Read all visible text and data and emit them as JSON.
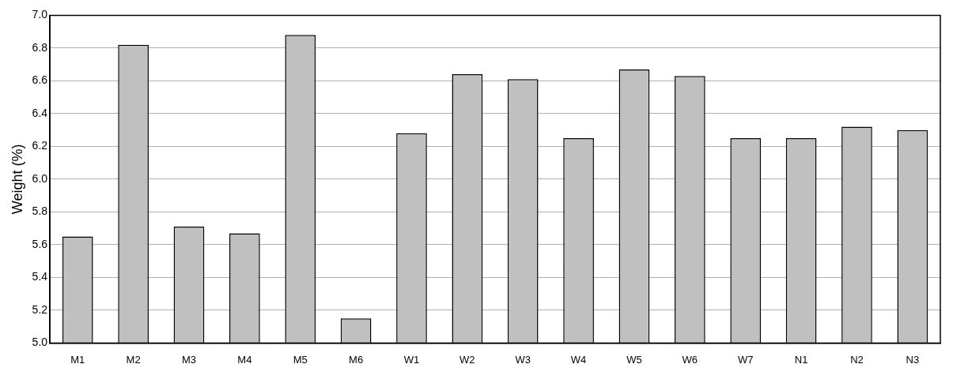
{
  "chart_data": {
    "type": "bar",
    "ylabel": "Weight (%)",
    "categories": [
      "M1",
      "M2",
      "M3",
      "M4",
      "M5",
      "M6",
      "W1",
      "W2",
      "W3",
      "W4",
      "W5",
      "W6",
      "W7",
      "N1",
      "N2",
      "N3"
    ],
    "values": [
      5.65,
      6.82,
      5.71,
      5.67,
      6.88,
      5.15,
      6.28,
      6.64,
      6.61,
      6.25,
      6.67,
      6.63,
      6.25,
      6.25,
      6.32,
      6.3
    ],
    "color": "#c0c0c0",
    "ylim": [
      5.0,
      7.0
    ],
    "yticks": [
      {
        "value": 5.0,
        "label": "5.0"
      },
      {
        "value": 5.2,
        "label": "5.2"
      },
      {
        "value": 5.4,
        "label": "5.4"
      },
      {
        "value": 5.6,
        "label": "5.6"
      },
      {
        "value": 5.8,
        "label": "5.8"
      },
      {
        "value": 6.0,
        "label": "6.0"
      },
      {
        "value": 6.2,
        "label": "6.2"
      },
      {
        "value": 6.4,
        "label": "6.4"
      },
      {
        "value": 6.6,
        "label": "6.6"
      },
      {
        "value": 6.8,
        "label": "6.8"
      },
      {
        "value": 7.0,
        "label": "7.0"
      }
    ],
    "grid": "y",
    "legend": false
  }
}
